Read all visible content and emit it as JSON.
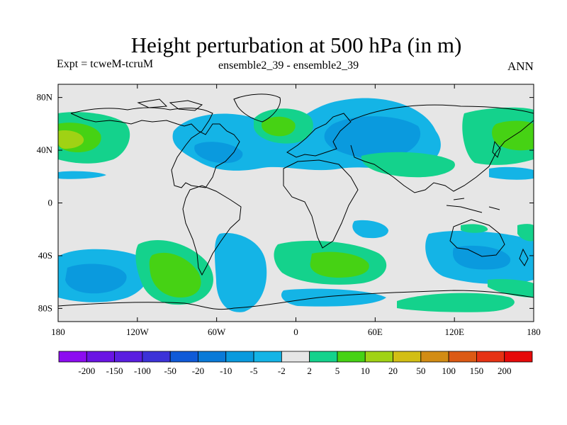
{
  "chart_data": {
    "type": "heatmap",
    "title": "Height perturbation at 500 hPa (in m)",
    "left_label": "Expt = tcweM-tcruM",
    "center_label": "ensemble2_39 - ensemble2_39",
    "right_label": "ANN",
    "x_range": [
      -180,
      180
    ],
    "y_range": [
      -90,
      90
    ],
    "x_ticks": [
      {
        "value": -180,
        "label": "180"
      },
      {
        "value": -120,
        "label": "120W"
      },
      {
        "value": -60,
        "label": "60W"
      },
      {
        "value": 0,
        "label": "0"
      },
      {
        "value": 60,
        "label": "60E"
      },
      {
        "value": 120,
        "label": "120E"
      },
      {
        "value": 180,
        "label": "180"
      }
    ],
    "y_ticks": [
      {
        "value": 80,
        "label": "80N"
      },
      {
        "value": 40,
        "label": "40N"
      },
      {
        "value": 0,
        "label": "0"
      },
      {
        "value": -40,
        "label": "40S"
      },
      {
        "value": -80,
        "label": "80S"
      }
    ],
    "colorbar": {
      "levels": [
        "-200",
        "-150",
        "-100",
        "-50",
        "-20",
        "-10",
        "-5",
        "-2",
        "2",
        "5",
        "10",
        "20",
        "50",
        "100",
        "150",
        "200"
      ],
      "colors": [
        "#8c0cf0",
        "#6a14e4",
        "#5a1ee0",
        "#3c32d8",
        "#0f5ad8",
        "#0a7ad8",
        "#0a9ade",
        "#14b4e6",
        "#e6e6e6",
        "#14d28c",
        "#46d214",
        "#a0d214",
        "#d2be14",
        "#d28c14",
        "#dc5a14",
        "#e63214",
        "#e60a0a"
      ]
    },
    "background_color": "#e6e6e6",
    "coastlines": true,
    "fields": [
      {
        "value_band": "-5 to -2",
        "center": [
          25,
          50
        ],
        "extent": [
          95,
          14
        ]
      },
      {
        "value_band": "-10 to -5",
        "center": [
          45,
          48
        ],
        "extent": [
          45,
          10
        ]
      },
      {
        "value_band": "-5 to -2",
        "center": [
          -70,
          43
        ],
        "extent": [
          30,
          12
        ]
      },
      {
        "value_band": "-10 to -5",
        "center": [
          -65,
          41
        ],
        "extent": [
          16,
          7
        ]
      },
      {
        "value_band": "2 to 5",
        "center": [
          -20,
          57
        ],
        "extent": [
          18,
          10
        ]
      },
      {
        "value_band": "5 to 10",
        "center": [
          -160,
          44
        ],
        "extent": [
          18,
          10
        ]
      },
      {
        "value_band": "5 to 10",
        "center": [
          170,
          45
        ],
        "extent": [
          18,
          14
        ]
      },
      {
        "value_band": "-5 to -2",
        "center": [
          -140,
          -48
        ],
        "extent": [
          40,
          14
        ]
      },
      {
        "value_band": "-10 to -5",
        "center": [
          -145,
          -52
        ],
        "extent": [
          20,
          8
        ]
      },
      {
        "value_band": "5 to 10",
        "center": [
          -90,
          -48
        ],
        "extent": [
          20,
          18
        ]
      },
      {
        "value_band": "-5 to -2",
        "center": [
          -45,
          -55
        ],
        "extent": [
          14,
          22
        ]
      },
      {
        "value_band": "5 to 10",
        "center": [
          45,
          -45
        ],
        "extent": [
          25,
          10
        ]
      },
      {
        "value_band": "-5 to -2",
        "center": [
          125,
          -45
        ],
        "extent": [
          28,
          15
        ]
      },
      {
        "value_band": "5 to 10",
        "center": [
          140,
          -82
        ],
        "extent": [
          30,
          6
        ]
      }
    ]
  }
}
